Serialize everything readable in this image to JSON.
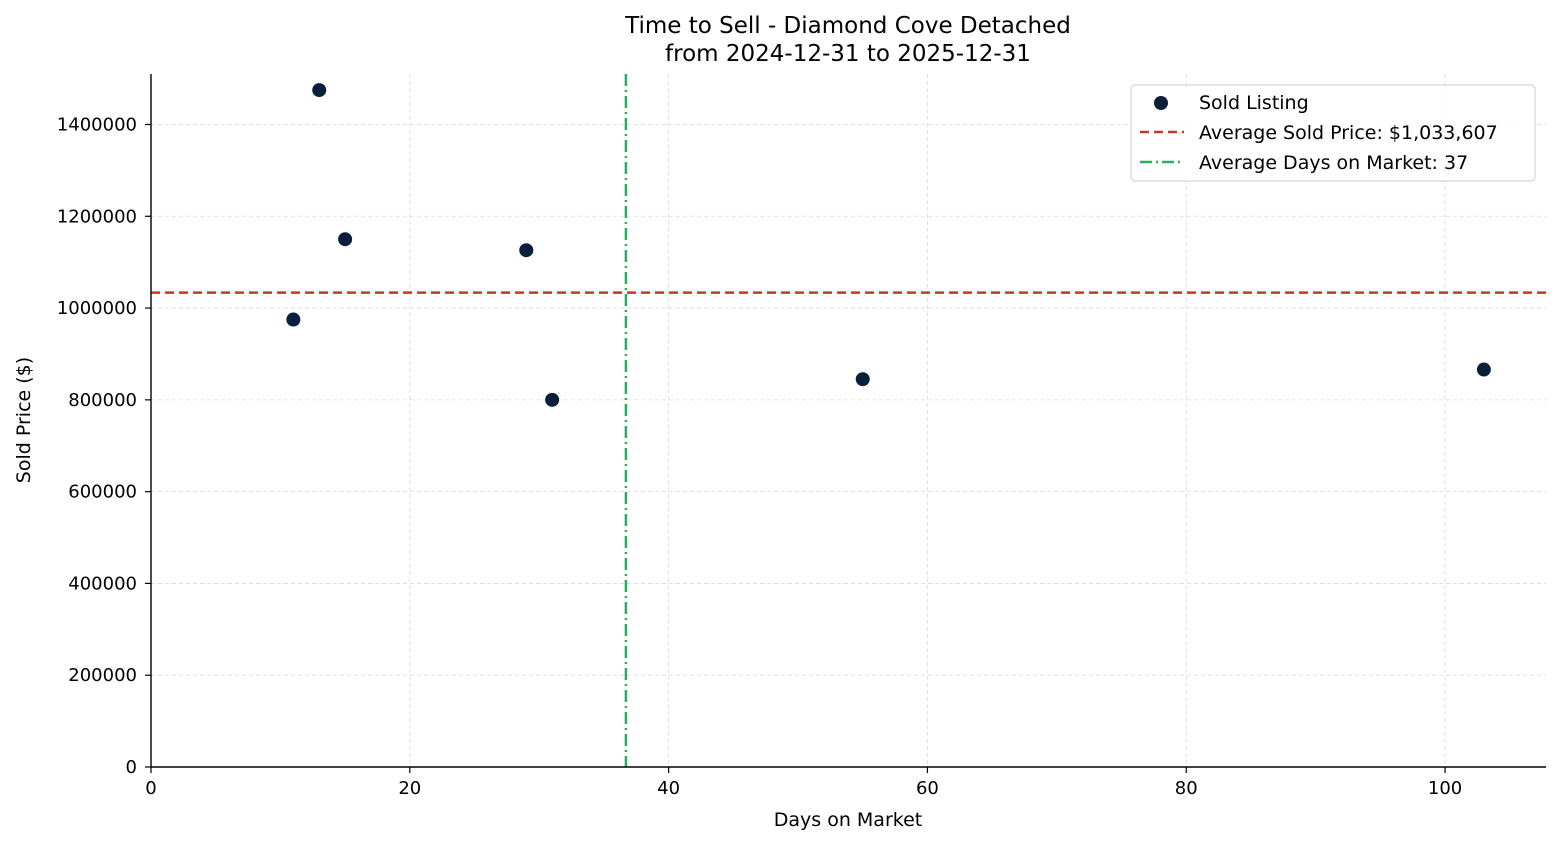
{
  "chart_data": {
    "type": "scatter",
    "title": "Time to Sell - Diamond Cove Detached",
    "subtitle": "from 2024-12-31 to 2025-12-31",
    "xlabel": "Days on Market",
    "ylabel": "Sold Price ($)",
    "xlim": [
      0,
      107.8
    ],
    "ylim": [
      0,
      1510000
    ],
    "xticks": [
      0,
      20,
      40,
      60,
      80,
      100
    ],
    "yticks": [
      0,
      200000,
      400000,
      600000,
      800000,
      1000000,
      1200000,
      1400000
    ],
    "grid": true,
    "legend_position": "top-right",
    "series": [
      {
        "name": "Sold Listing",
        "x": [
          13,
          15,
          29,
          11,
          31,
          55,
          103
        ],
        "y": [
          1475000,
          1150000,
          1126000,
          975000,
          800000,
          845000,
          866000
        ]
      }
    ],
    "reference_lines": {
      "avg_price": {
        "value": 1033607,
        "label": "Average Sold Price: $1,033,607"
      },
      "avg_days": {
        "value": 36.7,
        "label": "Average Days on Market: 37"
      }
    },
    "legend": {
      "scatter_label": "Sold Listing",
      "price_label": "Average Sold Price: $1,033,607",
      "days_label": "Average Days on Market: 37"
    },
    "colors": {
      "points": "#0b1f3a",
      "avg_price_line": "#c0392b",
      "avg_days_line": "#27ae60",
      "grid": "#d9d9d9",
      "axis": "#000000"
    }
  }
}
